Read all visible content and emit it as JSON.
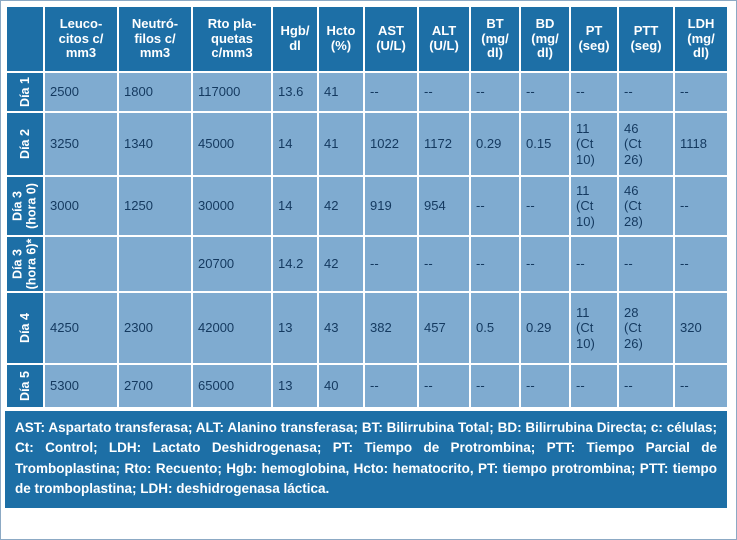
{
  "colors": {
    "header_bg": "#1d6fa6",
    "cell_bg": "#7fabd0",
    "cell_text": "#14395f",
    "grid": "#ffffff"
  },
  "table": {
    "columns": [
      "Leuco-\ncitos c/\nmm3",
      "Neutró-\nfilos c/\nmm3",
      "Rto pla-\nquetas\nc/mm3",
      "Hgb/\ndl",
      "Hcto\n(%)",
      "AST\n(U/L)",
      "ALT\n(U/L)",
      "BT\n(mg/\ndl)",
      "BD\n(mg/\ndl)",
      "PT\n(seg)",
      "PTT\n(seg)",
      "LDH\n(mg/\ndl)"
    ],
    "rows": [
      {
        "label": "Día 1",
        "values": [
          "2500",
          "1800",
          "117000",
          "13.6",
          "41",
          "--",
          "--",
          "--",
          "--",
          "--",
          "--",
          "--"
        ]
      },
      {
        "label": "Día 2",
        "values": [
          "3250",
          "1340",
          "45000",
          "14",
          "41",
          "1022",
          "1172",
          "0.29",
          "0.15",
          "11\n(Ct\n10)",
          "46\n(Ct\n26)",
          "1118"
        ]
      },
      {
        "label": "Día 3\n(hora 0)",
        "values": [
          "3000",
          "1250",
          "30000",
          "14",
          "42",
          "919",
          "954",
          "--",
          "--",
          "11\n(Ct\n10)",
          "46\n(Ct\n28)",
          "--"
        ]
      },
      {
        "label": "Día 3\n(hora 6)*",
        "values": [
          "",
          "",
          "20700",
          "14.2",
          "42",
          "--",
          "--",
          "--",
          "--",
          "--",
          "--",
          "--"
        ]
      },
      {
        "label": "Día 4",
        "values": [
          "4250",
          "2300",
          "42000",
          "13",
          "43",
          "382",
          "457",
          "0.5",
          "0.29",
          "11\n(Ct\n10)",
          "28\n(Ct\n26)",
          "320"
        ]
      },
      {
        "label": "Día 5",
        "values": [
          "5300",
          "2700",
          "65000",
          "13",
          "40",
          "--",
          "--",
          "--",
          "--",
          "--",
          "--",
          "--"
        ]
      }
    ],
    "footnote": "AST: Aspartato transferasa; ALT: Alanino transferasa; BT: Bilirrubina Total; BD: Bilirrubina Directa; c: células; Ct: Control; LDH: Lactato Deshidrogenasa; PT: Tiempo de Protrombina; PTT: Tiempo Parcial de Tromboplastina; Rto: Recuento; Hgb: hemoglobina, Hcto: hematocrito, PT: tiempo protrombina; PTT: tiempo de tromboplastina; LDH: deshidrogenasa láctica."
  }
}
